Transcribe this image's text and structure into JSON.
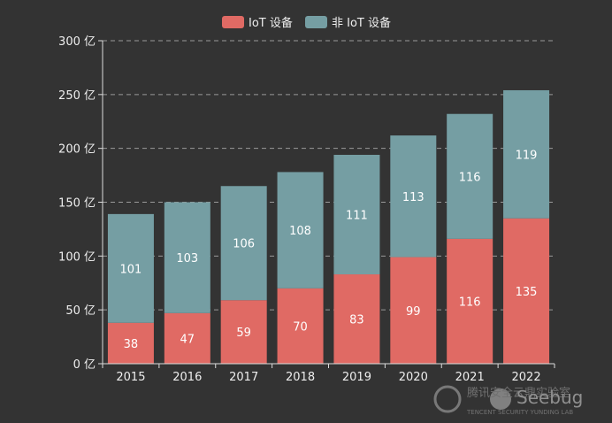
{
  "chart_data": {
    "type": "bar",
    "stacked": true,
    "categories": [
      "2015",
      "2016",
      "2017",
      "2018",
      "2019",
      "2020",
      "2021",
      "2022"
    ],
    "series": [
      {
        "name": "IoT 设备",
        "color": "#e06a64",
        "values": [
          38,
          47,
          59,
          70,
          83,
          99,
          116,
          135
        ]
      },
      {
        "name": "非 IoT 设备",
        "color": "#759ea3",
        "values": [
          101,
          103,
          106,
          108,
          111,
          113,
          116,
          119
        ]
      }
    ],
    "y_ticks": [
      0,
      50,
      100,
      150,
      200,
      250,
      300
    ],
    "y_unit": "亿",
    "ylim": [
      0,
      300
    ],
    "grid": "dashed",
    "legend_position": "top-center",
    "background": "#333333"
  },
  "watermark": {
    "brand": "Seebug",
    "line1": "腾讯安全云鼎实验室",
    "line2": "TENCENT SECURITY YUNDING LAB"
  }
}
